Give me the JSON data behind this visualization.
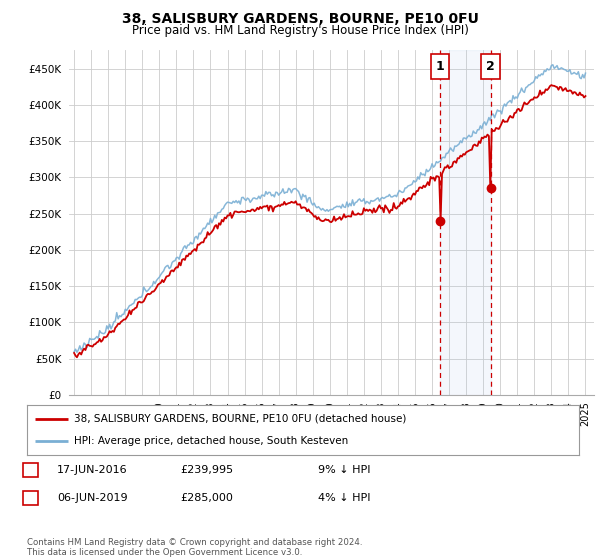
{
  "title1": "38, SALISBURY GARDENS, BOURNE, PE10 0FU",
  "title2": "Price paid vs. HM Land Registry's House Price Index (HPI)",
  "ytick_vals": [
    0,
    50000,
    100000,
    150000,
    200000,
    250000,
    300000,
    350000,
    400000,
    450000
  ],
  "ylim": [
    0,
    475000
  ],
  "xlim_start": 1994.7,
  "xlim_end": 2025.5,
  "sale1_date": 2016.46,
  "sale1_price": 239995,
  "sale2_date": 2019.43,
  "sale2_price": 285000,
  "red_color": "#cc0000",
  "blue_color": "#7aafd4",
  "vline_color": "#cc0000",
  "legend_label_red": "38, SALISBURY GARDENS, BOURNE, PE10 0FU (detached house)",
  "legend_label_blue": "HPI: Average price, detached house, South Kesteven",
  "table_row1": [
    "1",
    "17-JUN-2016",
    "£239,995",
    "9% ↓ HPI"
  ],
  "table_row2": [
    "2",
    "06-JUN-2019",
    "£285,000",
    "4% ↓ HPI"
  ],
  "footnote": "Contains HM Land Registry data © Crown copyright and database right 2024.\nThis data is licensed under the Open Government Licence v3.0.",
  "bg_color": "#ffffff",
  "grid_color": "#cccccc",
  "box_shade": "#ddeeff"
}
